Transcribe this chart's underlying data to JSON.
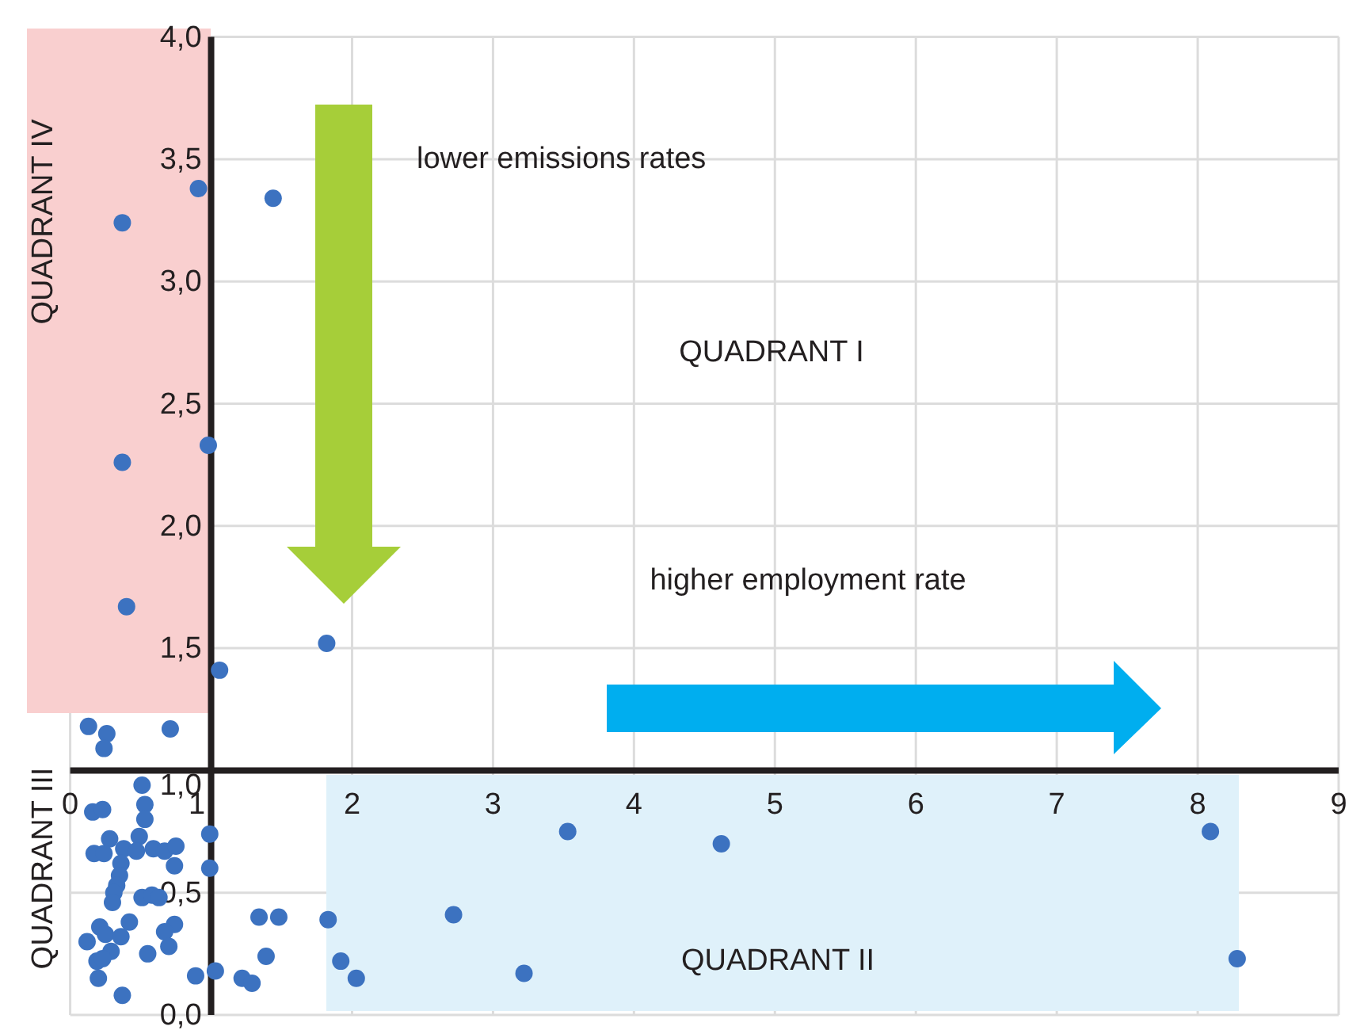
{
  "chart_data": {
    "type": "scatter",
    "marker": "circle",
    "grid": true,
    "xlim": [
      0,
      9
    ],
    "ylim": [
      0,
      4
    ],
    "xticks": [
      0,
      1,
      2,
      3,
      4,
      5,
      6,
      7,
      8,
      9
    ],
    "yticks": [
      {
        "value": 0,
        "label": "0,0"
      },
      {
        "value": 0.5,
        "label": "0,5"
      },
      {
        "value": 1,
        "label": "1,0"
      },
      {
        "value": 1.5,
        "label": "1,5"
      },
      {
        "value": 2,
        "label": "2,0"
      },
      {
        "value": 2.5,
        "label": "2,5"
      },
      {
        "value": 3,
        "label": "3,0"
      },
      {
        "value": 3.5,
        "label": "3,5"
      },
      {
        "value": 4,
        "label": "4,0"
      }
    ],
    "annotations": [
      "lower emissions rates",
      "QUADRANT I",
      "higher employment rate",
      "QUADRANT II",
      "QUADRANT III",
      "QUADRANT IV"
    ],
    "series": [
      {
        "color": "#3c72c0",
        "x": [
          0.37,
          0.91,
          1.44,
          0.37,
          0.98,
          0.4,
          1.82,
          1.06,
          0.13,
          0.26,
          0.24,
          0.71,
          0.51,
          0.16,
          0.23,
          0.53,
          0.53,
          0.28,
          0.49,
          0.17,
          0.24,
          0.38,
          0.47,
          0.59,
          0.67,
          0.75,
          0.36,
          0.74,
          0.99,
          0.99,
          0.35,
          0.33,
          0.31,
          0.3,
          0.51,
          0.58,
          0.63,
          0.42,
          0.21,
          0.25,
          0.36,
          0.12,
          0.74,
          0.67,
          0.7,
          0.29,
          0.19,
          0.23,
          0.55,
          0.2,
          0.37,
          0.89,
          1.03,
          1.22,
          1.29,
          1.39,
          1.34,
          1.48,
          1.83,
          1.92,
          2.03,
          3.53,
          4.62,
          8.09,
          2.72,
          3.22,
          8.28
        ],
        "values": [
          3.24,
          3.38,
          3.34,
          2.26,
          2.33,
          1.67,
          1.52,
          1.41,
          1.18,
          1.15,
          1.09,
          1.17,
          0.94,
          0.83,
          0.84,
          0.86,
          0.8,
          0.72,
          0.73,
          0.66,
          0.66,
          0.68,
          0.67,
          0.68,
          0.67,
          0.69,
          0.62,
          0.61,
          0.74,
          0.6,
          0.57,
          0.53,
          0.5,
          0.46,
          0.48,
          0.49,
          0.48,
          0.38,
          0.36,
          0.33,
          0.32,
          0.3,
          0.37,
          0.34,
          0.28,
          0.26,
          0.22,
          0.23,
          0.25,
          0.15,
          0.08,
          0.16,
          0.18,
          0.15,
          0.13,
          0.24,
          0.4,
          0.4,
          0.39,
          0.22,
          0.15,
          0.75,
          0.7,
          0.75,
          0.41,
          0.17,
          0.23
        ]
      }
    ]
  }
}
